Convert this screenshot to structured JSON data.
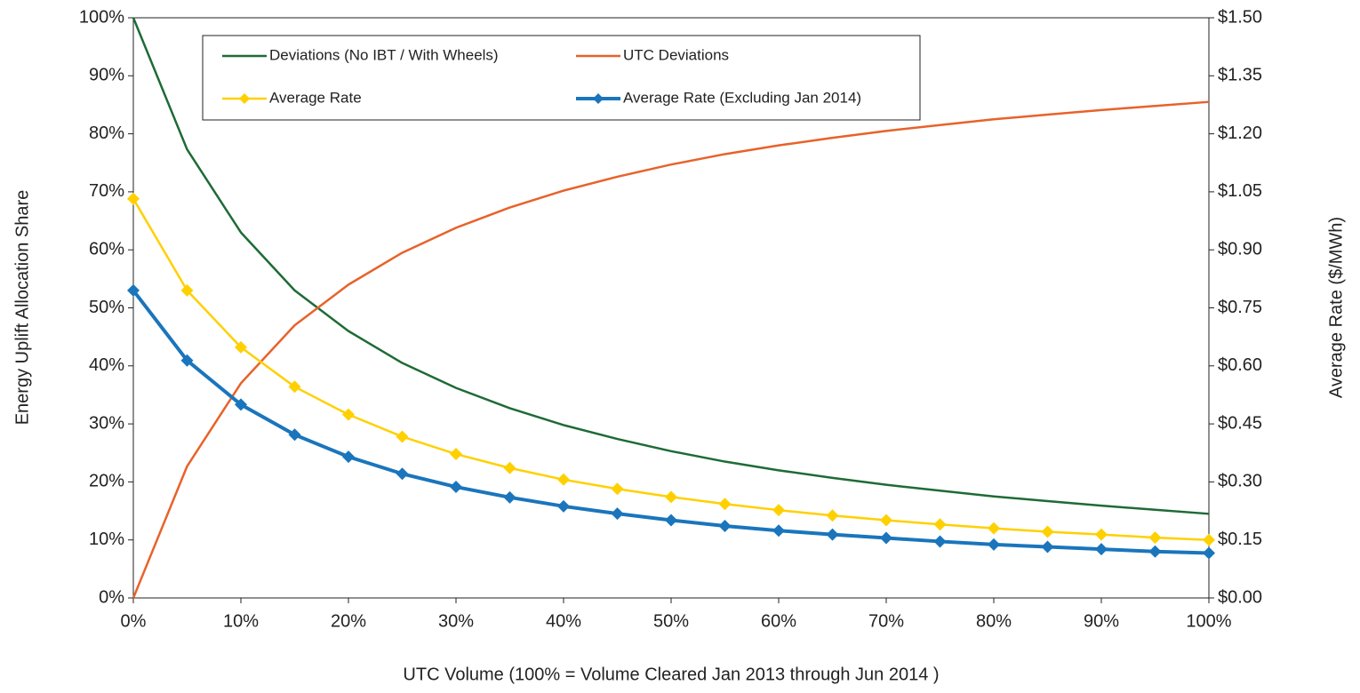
{
  "chart_data": {
    "type": "line",
    "xlabel": "UTC Volume (100% = Volume Cleared Jan 2013 through Jun 2014 )",
    "ylabel": "Energy Uplift Allocation Share",
    "y2label": "Average Rate ($/MWh)",
    "x": [
      0,
      5,
      10,
      15,
      20,
      25,
      30,
      35,
      40,
      45,
      50,
      55,
      60,
      65,
      70,
      75,
      80,
      85,
      90,
      95,
      100
    ],
    "xlim": [
      0,
      100
    ],
    "xticks": [
      {
        "value": 0,
        "label": "0%"
      },
      {
        "value": 10,
        "label": "10%"
      },
      {
        "value": 20,
        "label": "20%"
      },
      {
        "value": 30,
        "label": "30%"
      },
      {
        "value": 40,
        "label": "40%"
      },
      {
        "value": 50,
        "label": "50%"
      },
      {
        "value": 60,
        "label": "60%"
      },
      {
        "value": 70,
        "label": "70%"
      },
      {
        "value": 80,
        "label": "80%"
      },
      {
        "value": 90,
        "label": "90%"
      },
      {
        "value": 100,
        "label": "100%"
      }
    ],
    "ylim": [
      0,
      100
    ],
    "yticks": [
      {
        "value": 0,
        "label": "0%"
      },
      {
        "value": 10,
        "label": "10%"
      },
      {
        "value": 20,
        "label": "20%"
      },
      {
        "value": 30,
        "label": "30%"
      },
      {
        "value": 40,
        "label": "40%"
      },
      {
        "value": 50,
        "label": "50%"
      },
      {
        "value": 60,
        "label": "60%"
      },
      {
        "value": 70,
        "label": "70%"
      },
      {
        "value": 80,
        "label": "80%"
      },
      {
        "value": 90,
        "label": "90%"
      },
      {
        "value": 100,
        "label": "100%"
      }
    ],
    "y2lim": [
      0,
      1.5
    ],
    "y2ticks": [
      {
        "value": 0,
        "label": "$0.00"
      },
      {
        "value": 0.15,
        "label": "$0.15"
      },
      {
        "value": 0.3,
        "label": "$0.30"
      },
      {
        "value": 0.45,
        "label": "$0.45"
      },
      {
        "value": 0.6,
        "label": "$0.60"
      },
      {
        "value": 0.75,
        "label": "$0.75"
      },
      {
        "value": 0.9,
        "label": "$0.90"
      },
      {
        "value": 1.05,
        "label": "$1.05"
      },
      {
        "value": 1.2,
        "label": "$1.20"
      },
      {
        "value": 1.35,
        "label": "$1.35"
      },
      {
        "value": 1.5,
        "label": "$1.50"
      }
    ],
    "series": [
      {
        "name": "Deviations (No IBT / With Wheels)",
        "color": "#1e6b36",
        "values": [
          100,
          77.3,
          63,
          53,
          46,
          40.5,
          36.2,
          32.7,
          29.8,
          27.4,
          25.3,
          23.5,
          22.0,
          20.7,
          19.5,
          18.5,
          17.5,
          16.7,
          15.9,
          15.2,
          14.5
        ]
      },
      {
        "name": "UTC Deviations",
        "color": "#e8622a",
        "values": [
          0,
          22.7,
          37,
          47,
          54,
          59.5,
          63.8,
          67.3,
          70.2,
          72.6,
          74.7,
          76.5,
          78,
          79.3,
          80.5,
          81.5,
          82.5,
          83.3,
          84.1,
          84.8,
          85.5
        ]
      },
      {
        "name": "Average Rate",
        "color": "#ffd000",
        "axis": "y2",
        "marker": "diamond",
        "values": [
          1.032,
          0.795,
          0.648,
          0.546,
          0.474,
          0.417,
          0.372,
          0.336,
          0.306,
          0.282,
          0.261,
          0.243,
          0.227,
          0.213,
          0.201,
          0.19,
          0.18,
          0.171,
          0.164,
          0.156,
          0.15
        ]
      },
      {
        "name": "Average Rate (Excluding Jan 2014)",
        "color": "#1a75bc",
        "axis": "y2",
        "marker": "diamond",
        "values": [
          0.795,
          0.614,
          0.5,
          0.422,
          0.365,
          0.321,
          0.287,
          0.26,
          0.237,
          0.218,
          0.201,
          0.186,
          0.174,
          0.164,
          0.155,
          0.146,
          0.138,
          0.132,
          0.126,
          0.12,
          0.116
        ]
      }
    ]
  }
}
